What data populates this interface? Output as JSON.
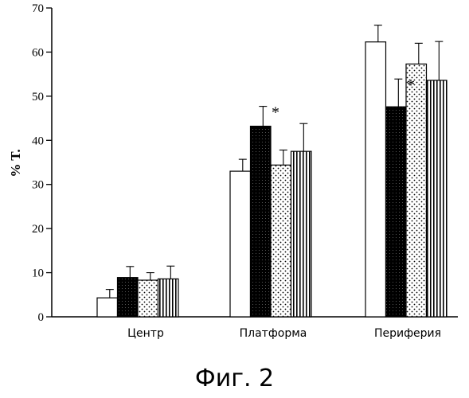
{
  "chart_data": {
    "type": "bar",
    "ylabel": "% T.",
    "ylim": [
      0,
      70
    ],
    "yticks": [
      0,
      10,
      20,
      30,
      40,
      50,
      60,
      70
    ],
    "categories": [
      "Центр",
      "Платформа",
      "Периферия"
    ],
    "series": [
      {
        "values": [
          4.3,
          33.0,
          62.3
        ],
        "errors": [
          1.9,
          2.7,
          3.8
        ],
        "pattern": "white"
      },
      {
        "values": [
          8.9,
          43.2,
          47.6
        ],
        "errors": [
          2.5,
          4.5,
          6.3
        ],
        "pattern": "black"
      },
      {
        "values": [
          8.3,
          34.4,
          57.3
        ],
        "errors": [
          1.7,
          3.4,
          4.7
        ],
        "pattern": "dots"
      },
      {
        "values": [
          8.6,
          37.5,
          53.6
        ],
        "errors": [
          2.9,
          6.3,
          8.8
        ],
        "pattern": "vertical-lines"
      }
    ],
    "annotations": [
      {
        "category": "Платформа",
        "series_index": 1,
        "text": "*"
      },
      {
        "category": "Периферия",
        "series_index": 1,
        "text": "*"
      }
    ],
    "grid": false,
    "legend": "none"
  },
  "caption": "Фиг. 2"
}
